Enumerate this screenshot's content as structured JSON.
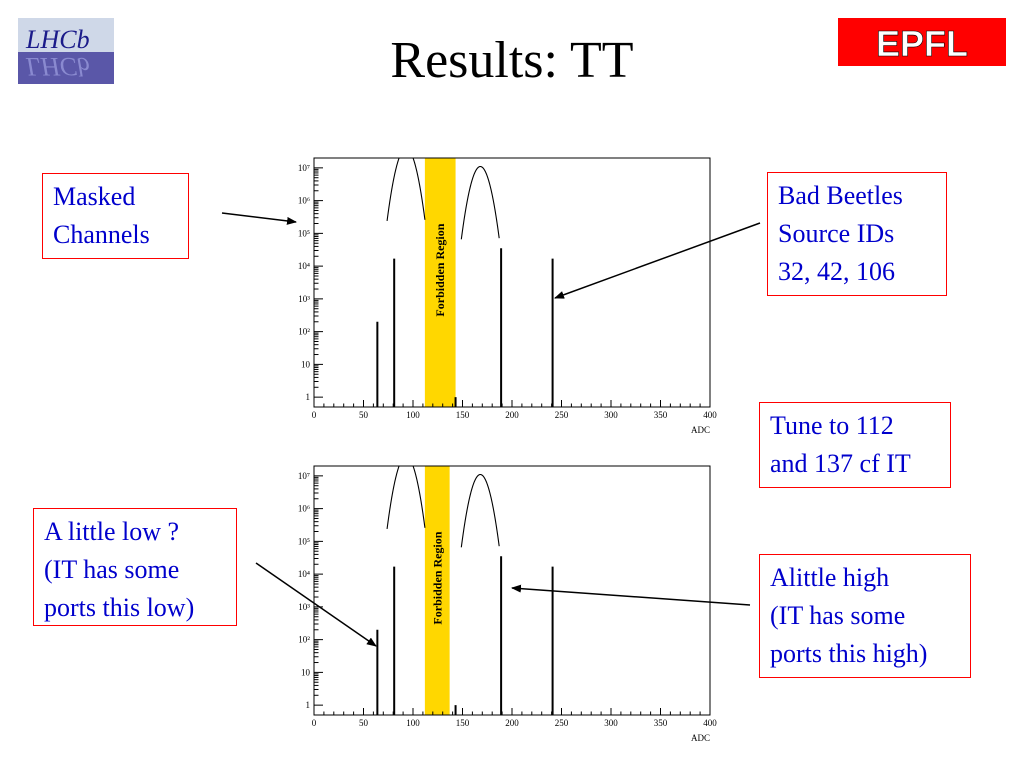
{
  "slide": {
    "title": "Results: TT"
  },
  "logos": {
    "lhcb_text": "LHCb",
    "epfl_text": "EPFL",
    "epfl_color": "#ff0000"
  },
  "callouts": {
    "masked_channels": [
      "Masked",
      "Channels"
    ],
    "bad_beetles": [
      "Bad Beetles",
      "Source IDs",
      "32, 42, 106"
    ],
    "tune": [
      "Tune to 112",
      "and 137 cf IT"
    ],
    "little_low": [
      "A little low ?",
      "(IT has some",
      "ports this low)"
    ],
    "little_high": [
      "Alittle high",
      "(IT has some",
      "ports this high)"
    ]
  },
  "colors": {
    "callout_border": "#ff0000",
    "callout_text": "#0000cc",
    "forbidden_band": "#ffd700",
    "lhcb_bg": "#5a57a8"
  },
  "chart_data": [
    {
      "type": "line",
      "xlabel": "ADC",
      "ylabel": "",
      "xlim": [
        0,
        400
      ],
      "ylim": [
        0.5,
        20000000
      ],
      "y_scale": "log",
      "x_ticks": [
        "0",
        "50",
        "100",
        "150",
        "200",
        "250",
        "300",
        "350",
        "400"
      ],
      "y_ticks": [
        "1",
        "10",
        "10²",
        "10³",
        "10⁴",
        "10⁵",
        "10⁶",
        "10⁷"
      ],
      "band": {
        "label": "Forbidden Region",
        "x_from": 112,
        "x_to": 143
      },
      "peaks": [
        {
          "center": 93,
          "sigma": 6,
          "height": 40000000
        },
        {
          "center": 168,
          "sigma": 6,
          "height": 11000000
        }
      ],
      "spikes": [
        {
          "x": 64,
          "y": 200
        },
        {
          "x": 81,
          "y": 17000
        },
        {
          "x": 143,
          "y": 1
        },
        {
          "x": 189,
          "y": 35000
        },
        {
          "x": 241,
          "y": 17000
        }
      ]
    },
    {
      "type": "line",
      "xlabel": "ADC",
      "ylabel": "",
      "xlim": [
        0,
        400
      ],
      "ylim": [
        0.5,
        20000000
      ],
      "y_scale": "log",
      "x_ticks": [
        "0",
        "50",
        "100",
        "150",
        "200",
        "250",
        "300",
        "350",
        "400"
      ],
      "y_ticks": [
        "1",
        "10",
        "10²",
        "10³",
        "10⁴",
        "10⁵",
        "10⁶",
        "10⁷"
      ],
      "band": {
        "label": "Forbidden Region",
        "x_from": 112,
        "x_to": 137
      },
      "peaks": [
        {
          "center": 93,
          "sigma": 6,
          "height": 40000000
        },
        {
          "center": 168,
          "sigma": 6,
          "height": 11000000
        }
      ],
      "spikes": [
        {
          "x": 64,
          "y": 200
        },
        {
          "x": 81,
          "y": 17000
        },
        {
          "x": 143,
          "y": 1
        },
        {
          "x": 189,
          "y": 35000
        },
        {
          "x": 241,
          "y": 17000
        }
      ]
    }
  ]
}
